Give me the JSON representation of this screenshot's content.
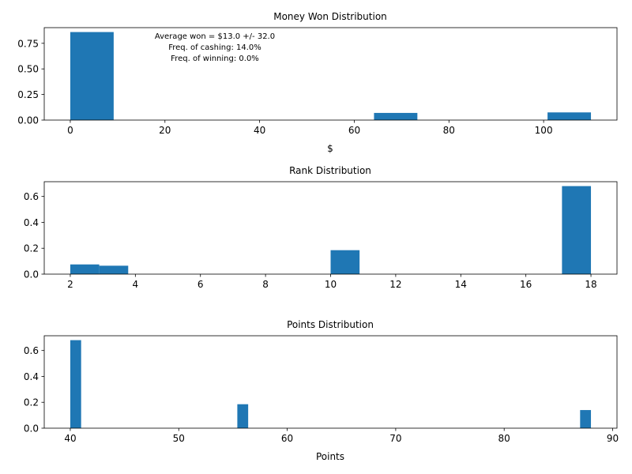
{
  "chart_data": [
    {
      "type": "bar",
      "title": "Money Won Distribution",
      "xlabel": "$",
      "ylabel": "",
      "xlim": [
        -5.5,
        115.5
      ],
      "ylim": [
        0,
        0.903
      ],
      "xticks": [
        0,
        20,
        40,
        60,
        80,
        100
      ],
      "yticks": [
        0.0,
        0.25,
        0.5,
        0.75
      ],
      "ytick_format": 2,
      "bar_color": "#1f77b4",
      "bins": [
        {
          "x0": 0,
          "x1": 9.17,
          "value": 0.86
        },
        {
          "x0": 64.17,
          "x1": 73.33,
          "value": 0.07
        },
        {
          "x0": 100.83,
          "x1": 110,
          "value": 0.075
        }
      ],
      "annotations": [
        "Average won = $13.0 +/- 32.0",
        "Freq. of cashing: 14.0%",
        "Freq. of winning: 0.0%"
      ]
    },
    {
      "type": "bar",
      "title": "Rank Distribution",
      "xlabel": "",
      "ylabel": "",
      "xlim": [
        1.2,
        18.8
      ],
      "ylim": [
        0,
        0.714
      ],
      "xticks": [
        2,
        4,
        6,
        8,
        10,
        12,
        14,
        16,
        18
      ],
      "yticks": [
        0.0,
        0.2,
        0.4,
        0.6
      ],
      "ytick_format": 1,
      "bar_color": "#1f77b4",
      "bins": [
        {
          "x0": 2,
          "x1": 2.89,
          "value": 0.075
        },
        {
          "x0": 2.89,
          "x1": 3.78,
          "value": 0.065
        },
        {
          "x0": 10,
          "x1": 10.89,
          "value": 0.185
        },
        {
          "x0": 17.11,
          "x1": 18,
          "value": 0.68
        }
      ]
    },
    {
      "type": "bar",
      "title": "Points Distribution",
      "xlabel": "Points",
      "ylabel": "",
      "xlim": [
        37.6,
        90.4
      ],
      "ylim": [
        0,
        0.714
      ],
      "xticks": [
        40,
        50,
        60,
        70,
        80,
        90
      ],
      "yticks": [
        0.0,
        0.2,
        0.4,
        0.6
      ],
      "ytick_format": 1,
      "bar_color": "#1f77b4",
      "bins": [
        {
          "x0": 40,
          "x1": 41,
          "value": 0.68
        },
        {
          "x0": 55.4,
          "x1": 56.4,
          "value": 0.185
        },
        {
          "x0": 87,
          "x1": 88,
          "value": 0.14
        }
      ]
    }
  ]
}
